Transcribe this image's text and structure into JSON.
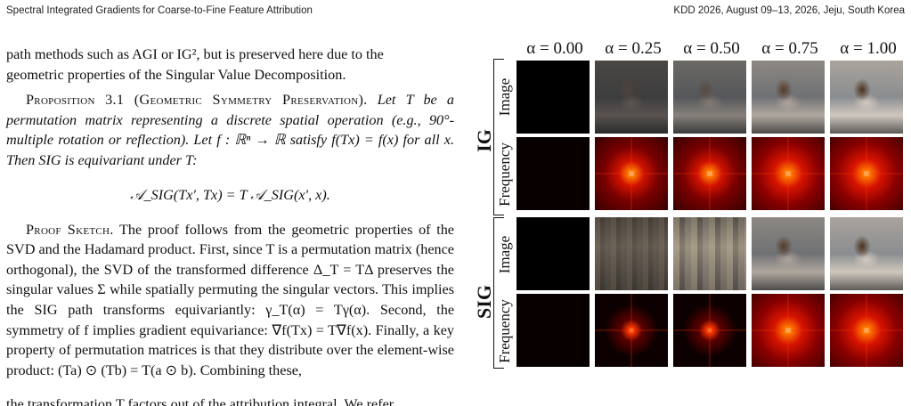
{
  "header": {
    "left": "Spectral Integrated Gradients for Coarse-to-Fine Feature Attribution",
    "right": "KDD 2026, August 09–13, 2026, Jeju, South Korea"
  },
  "text": {
    "intro_line1": "path methods such as AGI or IG², but is preserved here due to the",
    "intro_line2": "geometric properties of the Singular Value Decomposition.",
    "prop_title": "Proposition 3.1 (Geometric Symmetry Preservation).",
    "prop_body": "Let T be a permutation matrix representing a discrete spatial operation (e.g., 90°-multiple rotation or reflection). Let f : ℝⁿ → ℝ satisfy f(Tx) = f(x) for all x. Then SIG is equivariant under T:",
    "equation": "𝒜_SIG(Tx′, Tx) = T 𝒜_SIG(x′, x).",
    "proof_title": "Proof Sketch.",
    "proof_body": "The proof follows from the geometric properties of the SVD and the Hadamard product. First, since T is a permutation matrix (hence orthogonal), the SVD of the transformed difference Δ_T = TΔ preserves the singular values Σ while spatially permuting the singular vectors. This implies the SIG path transforms equivariantly: γ_T(α) = Tγ(α). Second, the symmetry of f implies gradient equivariance: ∇f(Tx) = T∇f(x). Finally, a key property of permutation matrices is that they distribute over the element-wise product: (Ta) ⊙ (Tb) = T(a ⊙ b). Combining these,",
    "last_line": "the transformation T factors out of the attribution integral. We refer"
  },
  "figure": {
    "alphas": [
      "α = 0.00",
      "α = 0.25",
      "α = 0.50",
      "α = 0.75",
      "α = 1.00"
    ],
    "groups": [
      {
        "label": "IG",
        "rows": [
          "Image",
          "Frequency"
        ]
      },
      {
        "label": "SIG",
        "rows": [
          "Image",
          "Frequency"
        ]
      }
    ]
  }
}
